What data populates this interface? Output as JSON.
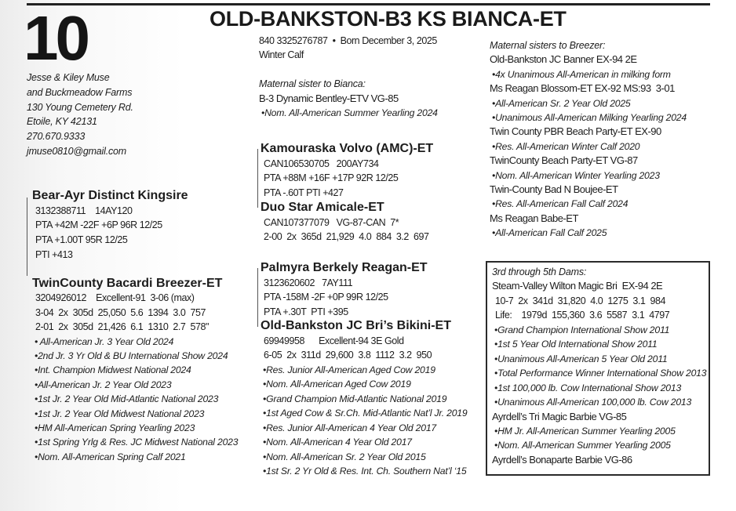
{
  "lot_number": "10",
  "title": "OLD-BANKSTON-B3 KS BIANCA-ET",
  "consignor": {
    "lines": [
      "Jesse & Kiley Muse",
      "and Buckmeadow Farms",
      "130 Young Cemetery Rd.",
      "Etoile, KY 42131",
      "270.670.9333",
      "jmuse0810@gmail.com"
    ]
  },
  "info": {
    "lines": [
      {
        "t": "data",
        "text": "840 3325276787  •  Born December 3, 2025"
      },
      {
        "t": "data",
        "text": "Winter Calf"
      }
    ]
  },
  "maternal_sister": {
    "lines": [
      {
        "t": "heading",
        "text": "Maternal sister to Bianca:"
      },
      {
        "t": "entry",
        "text": "B-3 Dynamic Bentley-ETV VG-85"
      },
      {
        "t": "bullet",
        "text": "•Nom. All-American Summer Yearling 2024"
      }
    ]
  },
  "sire": {
    "lines": [
      {
        "t": "name",
        "text": "Bear-Ayr Distinct Kingsire"
      },
      {
        "t": "data",
        "text": "3132388711    14AY120"
      },
      {
        "t": "data",
        "text": "PTA +42M -22F +6P 96R 12/25"
      },
      {
        "t": "data",
        "text": "PTA +1.00T 95R 12/25"
      },
      {
        "t": "data",
        "text": "PTI +413"
      }
    ]
  },
  "dam": {
    "lines": [
      {
        "t": "name",
        "text": "TwinCounty Bacardi Breezer-ET"
      },
      {
        "t": "data",
        "text": "3204926012    Excellent-91  3-06 (max)"
      },
      {
        "t": "data",
        "text": "3-04  2x  305d  25,050  5.6  1394  3.0  757"
      },
      {
        "t": "data",
        "text": "2-01  2x  305d  21,426  6.1  1310  2.7  578\""
      },
      {
        "t": "bullet",
        "text": "• All-American Jr. 3 Year Old 2024"
      },
      {
        "t": "bullet",
        "text": "•2nd Jr. 3 Yr Old & BU International Show 2024"
      },
      {
        "t": "bullet",
        "text": "•Int. Champion Midwest National 2024"
      },
      {
        "t": "bullet",
        "text": "•All-American Jr. 2 Year Old 2023"
      },
      {
        "t": "bullet",
        "text": "•1st Jr. 2 Year Old Mid-Atlantic National 2023"
      },
      {
        "t": "bullet",
        "text": "•1st Jr. 2 Year Old Midwest National 2023"
      },
      {
        "t": "bullet",
        "text": "•HM All-American Spring Yearling 2023"
      },
      {
        "t": "bullet",
        "text": "•1st Spring Yrlg & Res. JC Midwest National 2023"
      },
      {
        "t": "bullet",
        "text": "•Nom. All-American Spring Calf 2021"
      }
    ]
  },
  "sire_pedigree": {
    "lines": [
      {
        "t": "name",
        "text": "Kamouraska Volvo (AMC)-ET"
      },
      {
        "t": "data",
        "text": "CAN106530705   200AY734"
      },
      {
        "t": "data",
        "text": "PTA +88M +16F +17P 92R 12/25"
      },
      {
        "t": "data",
        "text": "PTA -.60T PTI +427"
      },
      {
        "t": "name",
        "text": "Duo Star Amicale-ET"
      },
      {
        "t": "data",
        "text": "CAN107377079   VG-87-CAN  7*"
      },
      {
        "t": "data",
        "text": "2-00  2x  365d  21,929  4.0  884  3.2  697"
      }
    ]
  },
  "dam_pedigree": {
    "lines": [
      {
        "t": "name",
        "text": "Palmyra Berkely Reagan-ET"
      },
      {
        "t": "data",
        "text": "3123620602   7AY111"
      },
      {
        "t": "data",
        "text": "PTA -158M -2F +0P 99R 12/25"
      },
      {
        "t": "data",
        "text": "PTA +.30T  PTI +395"
      },
      {
        "t": "name",
        "text": "Old-Bankston JC Bri’s Bikini-ET"
      },
      {
        "t": "data",
        "text": "69949958      Excellent-94 3E Gold"
      },
      {
        "t": "data",
        "text": "6-05  2x  311d  29,600  3.8  1112  3.2  950"
      },
      {
        "t": "bullet",
        "text": "•Res. Junior All-American Aged Cow 2019"
      },
      {
        "t": "bullet",
        "text": "•Nom. All-American Aged Cow 2019"
      },
      {
        "t": "bullet",
        "text": "•Grand Champion Mid-Atlantic National 2019"
      },
      {
        "t": "bullet",
        "text": "•1st Aged Cow & Sr.Ch. Mid-Atlantic Nat’l Jr. 2019"
      },
      {
        "t": "bullet",
        "text": "•Res. Junior All-American 4 Year Old 2017"
      },
      {
        "t": "bullet",
        "text": "•Nom. All-American 4 Year Old 2017"
      },
      {
        "t": "bullet",
        "text": "•Nom. All-American Sr. 2 Year Old 2015"
      },
      {
        "t": "bullet",
        "text": "•1st Sr. 2 Yr Old & Res. Int. Ch. Southern Nat’l ‘15"
      }
    ]
  },
  "maternal_sisters_breezer": {
    "lines": [
      {
        "t": "heading",
        "text": "Maternal sisters to Breezer:"
      },
      {
        "t": "entry",
        "text": "Old-Bankston JC Banner EX-94 2E"
      },
      {
        "t": "bullet",
        "text": "•4x Unanimous All-American in milking form"
      },
      {
        "t": "entry",
        "text": "Ms Reagan Blossom-ET EX-92 MS:93  3-01"
      },
      {
        "t": "bullet",
        "text": "•All-American Sr. 2 Year Old 2025"
      },
      {
        "t": "bullet",
        "text": "•Unanimous All-American Milking Yearling 2024"
      },
      {
        "t": "entry",
        "text": "Twin County PBR Beach Party-ET EX-90"
      },
      {
        "t": "bullet",
        "text": "•Res. All-American Winter Calf 2020"
      },
      {
        "t": "entry",
        "text": "TwinCounty Beach Party-ET VG-87"
      },
      {
        "t": "bullet",
        "text": "•Nom. All-American Winter Yearling 2023"
      },
      {
        "t": "entry",
        "text": "Twin-County Bad N Boujee-ET"
      },
      {
        "t": "bullet",
        "text": "•Res. All-American Fall Calf 2024"
      },
      {
        "t": "entry",
        "text": "Ms Reagan Babe-ET"
      },
      {
        "t": "bullet",
        "text": "•All-American Fall Calf 2025"
      }
    ]
  },
  "dams_3_to_5": {
    "lines": [
      {
        "t": "heading",
        "text": "3rd through 5th Dams:"
      },
      {
        "t": "entry",
        "text": "Steam-Valley Wilton Magic Bri  EX-94 2E"
      },
      {
        "t": "data",
        "text": "10-7  2x  341d  31,820  4.0  1275  3.1  984"
      },
      {
        "t": "data",
        "text": "Life:    1979d  155,360  3.6  5587  3.1  4797"
      },
      {
        "t": "bullet",
        "text": "•Grand Champion International Show 2011"
      },
      {
        "t": "bullet",
        "text": "•1st 5 Year Old International Show 2011"
      },
      {
        "t": "bullet",
        "text": "•Unanimous All-American 5 Year Old 2011"
      },
      {
        "t": "bullet",
        "text": "•Total Performance Winner International Show 2013"
      },
      {
        "t": "bullet",
        "text": "•1st 100,000 lb. Cow International Show 2013"
      },
      {
        "t": "bullet",
        "text": "•Unanimous All-American 100,000 lb. Cow 2013"
      },
      {
        "t": "entry",
        "text": "Ayrdell’s Tri Magic Barbie VG-85"
      },
      {
        "t": "bullet",
        "text": "•HM Jr. All-American Summer Yearling 2005"
      },
      {
        "t": "bullet",
        "text": "•Nom. All-American Summer Yearling 2005"
      },
      {
        "t": "entry",
        "text": "Ayrdell’s Bonaparte Barbie VG-86"
      }
    ]
  }
}
